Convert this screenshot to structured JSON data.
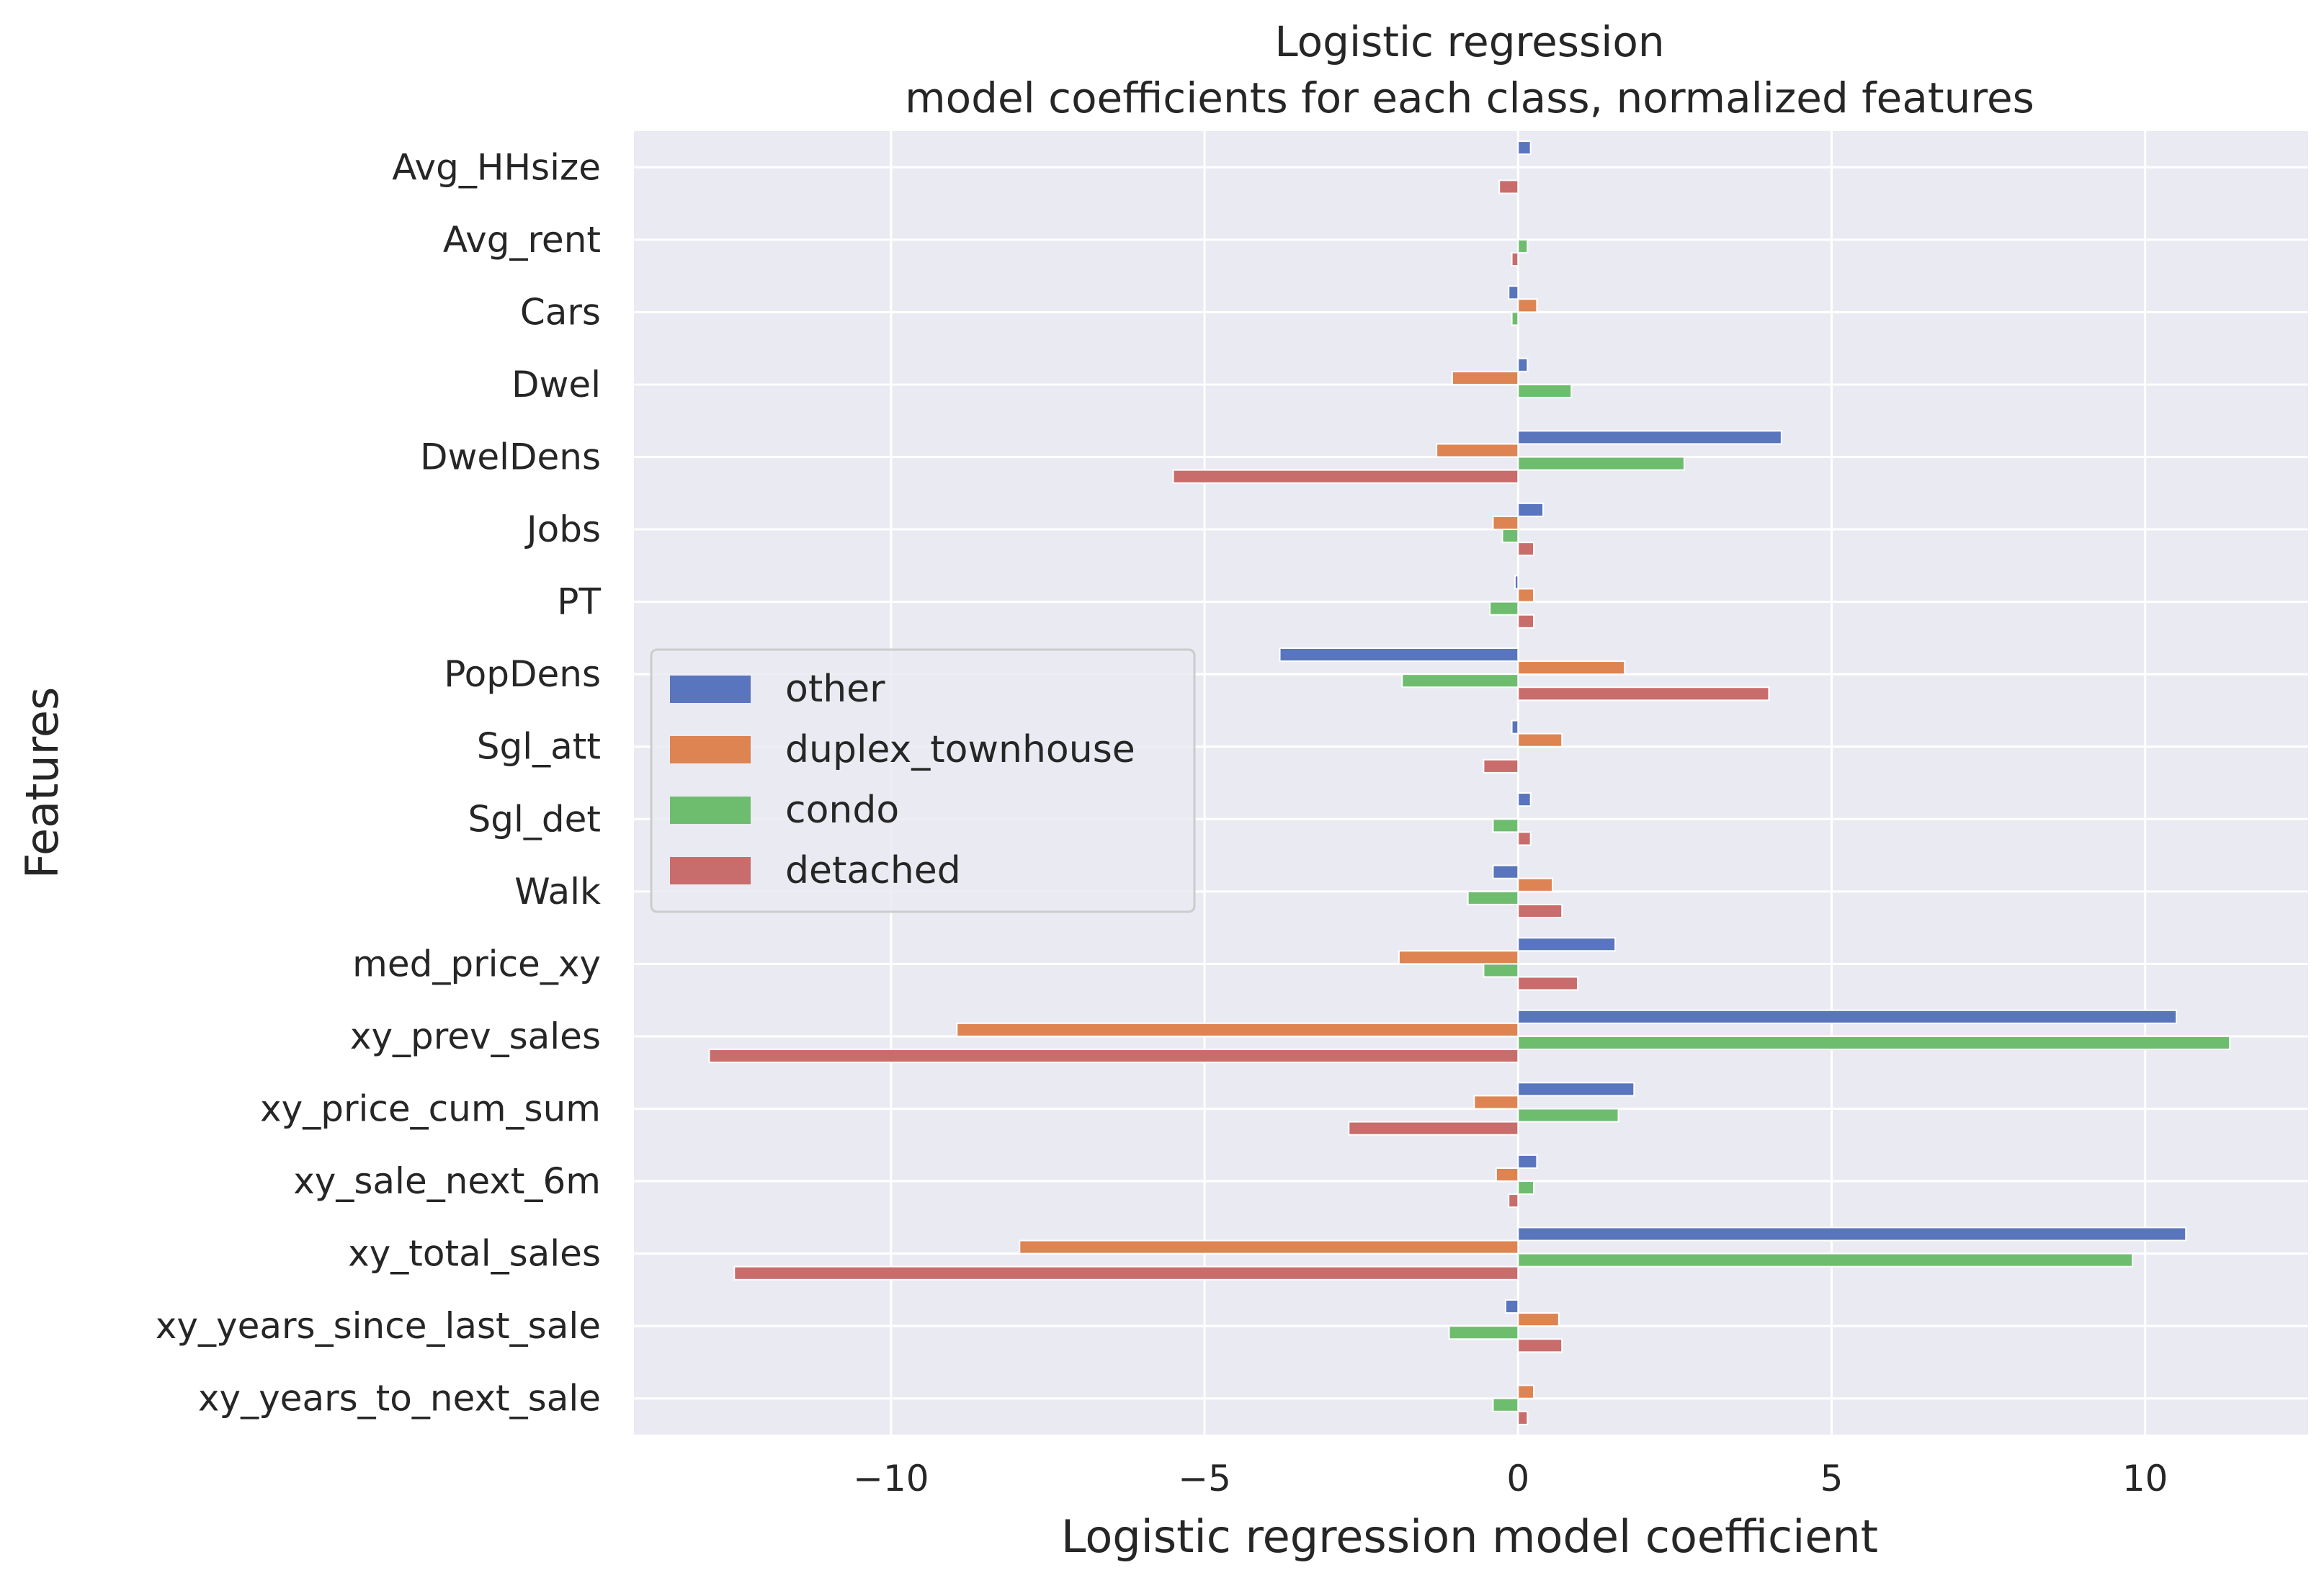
{
  "chart_data": {
    "type": "bar",
    "orientation": "horizontal",
    "title": "Logistic regression\nmodel coefficients for each class, normalized features",
    "xlabel": "Logistic regression model coefficient",
    "ylabel": "Features",
    "xlim": [
      -14.1,
      12.6
    ],
    "xticks": [
      -10,
      -5,
      0,
      5,
      10
    ],
    "xtick_labels": [
      "−10",
      "−5",
      "0",
      "5",
      "10"
    ],
    "grid": true,
    "legend_position": "center-left",
    "categories": [
      "Avg_HHsize",
      "Avg_rent",
      "Cars",
      "Dwel",
      "DwelDens",
      "Jobs",
      "PT",
      "PopDens",
      "Sgl_att",
      "Sgl_det",
      "Walk",
      "med_price_xy",
      "xy_prev_sales",
      "xy_price_cum_sum",
      "xy_sale_next_6m",
      "xy_total_sales",
      "xy_years_since_last_sale",
      "xy_years_to_next_sale"
    ],
    "series": [
      {
        "name": "other",
        "color": "#5975bd",
        "values": [
          0.2,
          0.0,
          -0.15,
          0.15,
          4.2,
          0.4,
          -0.05,
          -3.8,
          -0.1,
          0.2,
          -0.4,
          1.55,
          10.5,
          1.85,
          0.3,
          10.65,
          -0.2,
          0.0
        ]
      },
      {
        "name": "duplex_townhouse",
        "color": "#dd8452",
        "values": [
          0.0,
          0.0,
          0.3,
          -1.05,
          -1.3,
          -0.4,
          0.25,
          1.7,
          0.7,
          0.0,
          0.55,
          -1.9,
          -8.95,
          -0.7,
          -0.35,
          -7.95,
          0.65,
          0.25
        ]
      },
      {
        "name": "condo",
        "color": "#6ebd6e",
        "values": [
          0.0,
          0.15,
          -0.1,
          0.85,
          2.65,
          -0.25,
          -0.45,
          -1.85,
          0.0,
          -0.4,
          -0.8,
          -0.55,
          11.35,
          1.6,
          0.25,
          9.8,
          -1.1,
          -0.4
        ]
      },
      {
        "name": "detached",
        "color": "#c96c6c",
        "values": [
          -0.3,
          -0.1,
          0.0,
          0.0,
          -5.5,
          0.25,
          0.25,
          4.0,
          -0.55,
          0.2,
          0.7,
          0.95,
          -12.9,
          -2.7,
          -0.15,
          -12.5,
          0.7,
          0.15
        ]
      }
    ]
  }
}
